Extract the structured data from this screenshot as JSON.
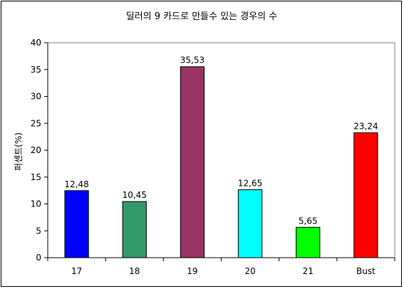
{
  "chart_data": {
    "type": "bar",
    "title": "딜러의 9 카드로 만들수 있는 경우의 수",
    "xlabel": "",
    "ylabel": "퍼센트(%)",
    "ylim": [
      0,
      40
    ],
    "yticks": [
      "0",
      "5",
      "10",
      "15",
      "20",
      "25",
      "30",
      "35",
      "40"
    ],
    "categories": [
      "17",
      "18",
      "19",
      "20",
      "21",
      "Bust"
    ],
    "values": [
      12.48,
      10.45,
      35.53,
      12.65,
      5.65,
      23.24
    ],
    "value_labels": [
      "12,48",
      "10,45",
      "35,53",
      "12,65",
      "5,65",
      "23,24"
    ],
    "colors": [
      "#0000ff",
      "#339966",
      "#993366",
      "#00ffff",
      "#00ff00",
      "#ff0000"
    ],
    "grid": false,
    "legend": "none"
  }
}
